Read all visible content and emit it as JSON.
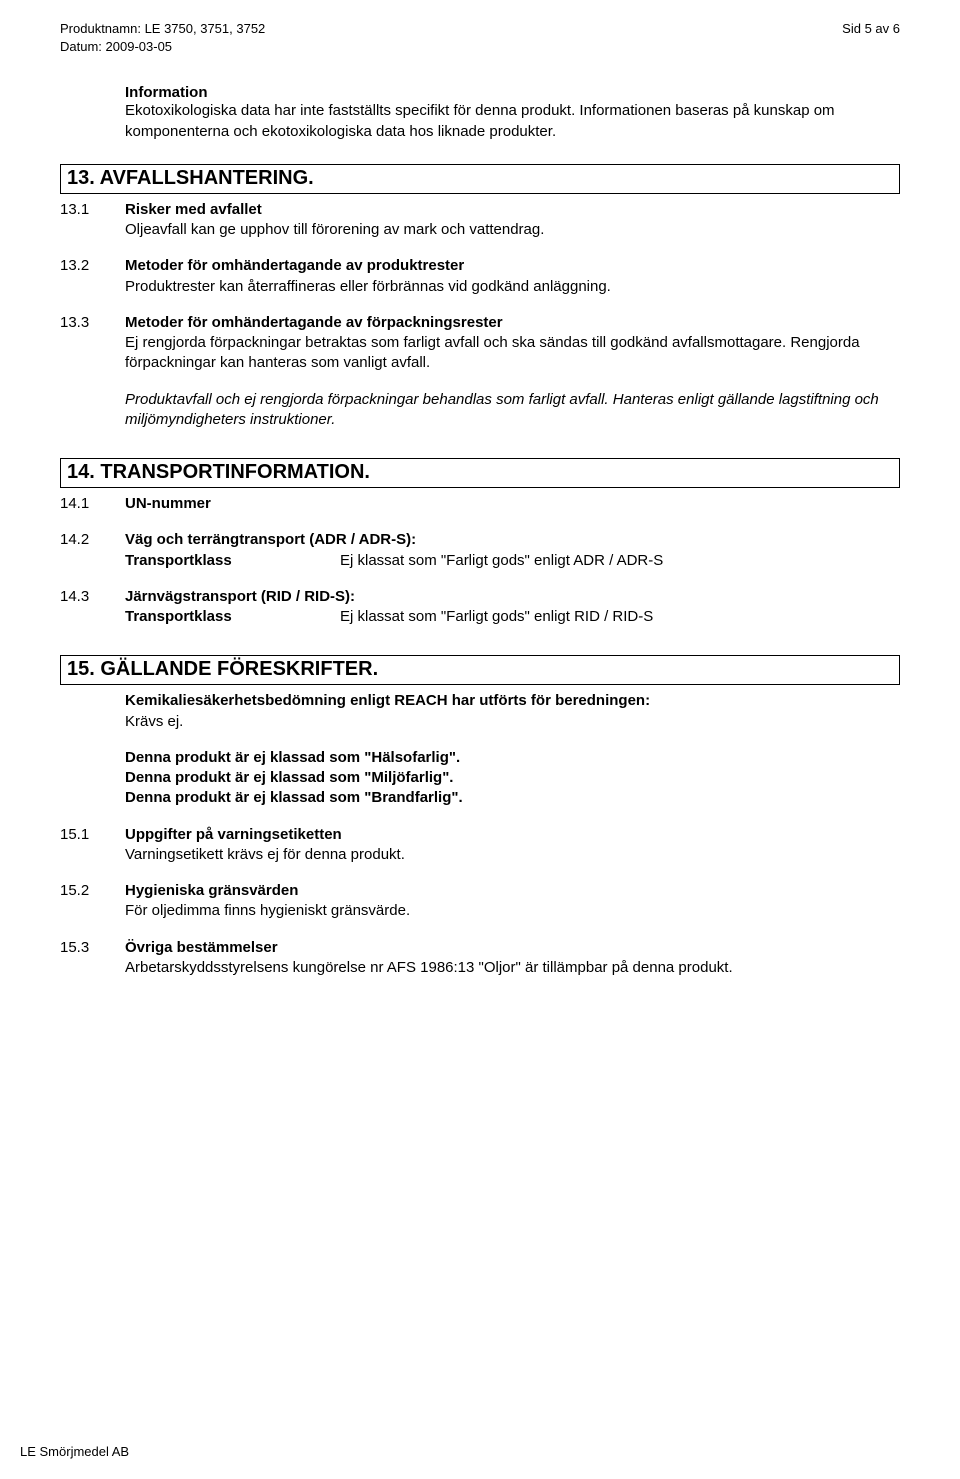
{
  "header": {
    "product_label": "Produktnamn:",
    "product_value": "LE 3750, 3751, 3752",
    "date_label": "Datum:",
    "date_value": "2009-03-05",
    "page_label": "Sid 5 av 6"
  },
  "info": {
    "label": "Information",
    "body": "Ekotoxikologiska data har inte fastställts specifikt för denna produkt. Informationen baseras på kunskap om komponenterna och ekotoxikologiska data hos liknade produkter."
  },
  "s13": {
    "title": "13. AVFALLSHANTERING.",
    "items": [
      {
        "num": "13.1",
        "title": "Risker med avfallet",
        "body": "Oljeavfall kan ge upphov till förorening av mark och vattendrag."
      },
      {
        "num": "13.2",
        "title": "Metoder för omhändertagande av produktrester",
        "body": "Produktrester kan återraffineras eller förbrännas vid godkänd anläggning."
      },
      {
        "num": "13.3",
        "title": "Metoder för omhändertagande av förpackningsrester",
        "body": "Ej rengjorda förpackningar betraktas som farligt avfall och ska sändas till godkänd avfallsmottagare. Rengjorda förpackningar kan hanteras som vanligt avfall."
      }
    ],
    "note_italic": "Produktavfall och ej rengjorda förpackningar behandlas som farligt avfall. Hanteras enligt gällande lagstiftning och miljömyndigheters instruktioner."
  },
  "s14": {
    "title": "14. TRANSPORTINFORMATION.",
    "r1": {
      "num": "14.1",
      "title": "UN-nummer"
    },
    "r2": {
      "num": "14.2",
      "title": "Väg och terrängtransport (ADR / ADR-S):",
      "kv_key": "Transportklass",
      "kv_val": "Ej klassat som \"Farligt gods\" enligt ADR / ADR-S"
    },
    "r3": {
      "num": "14.3",
      "title": "Järnvägstransport (RID / RID-S):",
      "kv_key": "Transportklass",
      "kv_val": "Ej klassat som \"Farligt gods\" enligt RID / RID-S"
    }
  },
  "s15": {
    "title": "15. GÄLLANDE FÖRESKRIFTER.",
    "intro_bold": "Kemikaliesäkerhetsbedömning enligt REACH har utförts för beredningen:",
    "intro_val": "Krävs ej.",
    "class_lines": [
      "Denna produkt är ej klassad som \"Hälsofarlig\".",
      "Denna produkt är ej klassad som \"Miljöfarlig\".",
      "Denna produkt är ej klassad som \"Brandfarlig\"."
    ],
    "items": [
      {
        "num": "15.1",
        "title": "Uppgifter på varningsetiketten",
        "body": "Varningsetikett krävs ej för denna produkt."
      },
      {
        "num": "15.2",
        "title": "Hygieniska gränsvärden",
        "body": "För oljedimma finns hygieniskt gränsvärde."
      },
      {
        "num": "15.3",
        "title": "Övriga bestämmelser",
        "body": "Arbetarskyddsstyrelsens kungörelse nr AFS 1986:13 \"Oljor\" är tillämpbar på denna produkt."
      }
    ]
  },
  "footer": "LE Smörjmedel AB"
}
